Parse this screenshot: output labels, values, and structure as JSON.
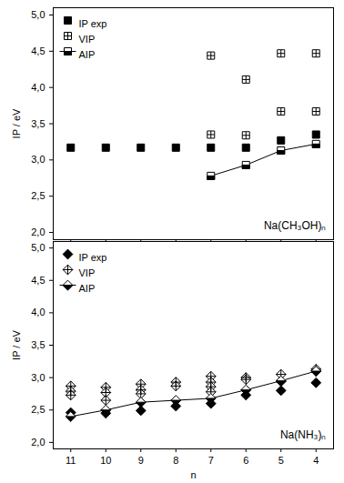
{
  "chart_data": [
    {
      "type": "scatter",
      "annotation": "Na(CH₃OH)ₙ",
      "ylabel": "IP / eV",
      "xlim": [
        11.5,
        3.5
      ],
      "xticks": [
        11,
        10,
        9,
        8,
        7,
        6,
        5,
        4
      ],
      "ylim": [
        1.9,
        5.1
      ],
      "yticks": [
        {
          "value": 2,
          "label": "2,0"
        },
        {
          "value": 2.5,
          "label": "2,5"
        },
        {
          "value": 3,
          "label": "3,0"
        },
        {
          "value": 3.5,
          "label": "3,5"
        },
        {
          "value": 4,
          "label": "4,0"
        },
        {
          "value": 4.5,
          "label": "4,5"
        },
        {
          "value": 5,
          "label": "5,0"
        }
      ],
      "tick_labels": "y",
      "legend": "top-left",
      "series": [
        {
          "name": "IP exp",
          "color": "#000000",
          "marker": "square",
          "line_style": "none",
          "x": [
            11,
            10,
            9,
            8,
            7,
            6,
            5,
            4
          ],
          "values": [
            3.17,
            3.17,
            3.17,
            3.17,
            3.17,
            3.17,
            3.27,
            3.35
          ]
        },
        {
          "name": "VIP",
          "color": "#000000",
          "marker": "square_plus",
          "line_style": "none",
          "x": [
            7,
            7,
            6,
            6,
            5,
            5,
            4,
            4
          ],
          "values": [
            4.44,
            3.35,
            4.11,
            3.34,
            4.47,
            3.67,
            4.47,
            3.67
          ]
        },
        {
          "name": "AIP",
          "color": "#000000",
          "marker": "square_half",
          "line_style": "solid",
          "x": [
            7,
            6,
            5,
            4
          ],
          "values": [
            2.78,
            2.93,
            3.13,
            3.22
          ]
        }
      ]
    },
    {
      "type": "scatter",
      "annotation": "Na(NH₃)ₙ",
      "xlabel": "n",
      "ylabel": "IP / eV",
      "xlim": [
        11.5,
        3.5
      ],
      "xticks": [
        11,
        10,
        9,
        8,
        7,
        6,
        5,
        4
      ],
      "ylim": [
        1.9,
        5.1
      ],
      "yticks": [
        {
          "value": 2,
          "label": "2,0"
        },
        {
          "value": 2.5,
          "label": "2,5"
        },
        {
          "value": 3,
          "label": "3,0"
        },
        {
          "value": 3.5,
          "label": "3,5"
        },
        {
          "value": 4,
          "label": "4,0"
        },
        {
          "value": 4.5,
          "label": "4,5"
        },
        {
          "value": 5,
          "label": "5,0"
        }
      ],
      "legend": "top-left",
      "series": [
        {
          "name": "IP exp",
          "color": "#000000",
          "marker": "diamond",
          "line_style": "none",
          "x": [
            11,
            10,
            9,
            8,
            7,
            6,
            5,
            4
          ],
          "values": [
            2.46,
            2.45,
            2.49,
            2.56,
            2.6,
            2.73,
            2.8,
            2.92
          ]
        },
        {
          "name": "VIP",
          "color": "#000000",
          "marker": "diamond_plus",
          "line_style": "none",
          "x": [
            11,
            11,
            11,
            10,
            10,
            10,
            9,
            9,
            9,
            8,
            8,
            7,
            7,
            7,
            7,
            6,
            6,
            5,
            5,
            4,
            4
          ],
          "values": [
            2.87,
            2.79,
            2.73,
            2.85,
            2.77,
            2.65,
            2.9,
            2.81,
            2.75,
            2.93,
            2.87,
            3.02,
            2.93,
            2.86,
            2.78,
            3.0,
            2.97,
            3.05,
            2.94,
            3.13,
            3.1
          ]
        },
        {
          "name": "AIP",
          "color": "#000000",
          "marker": "diamond_half",
          "line_style": "solid",
          "x": [
            11,
            10,
            9,
            8,
            7,
            6,
            5,
            4
          ],
          "values": [
            2.4,
            2.5,
            2.62,
            2.65,
            2.68,
            2.81,
            2.95,
            3.1
          ]
        }
      ]
    }
  ]
}
